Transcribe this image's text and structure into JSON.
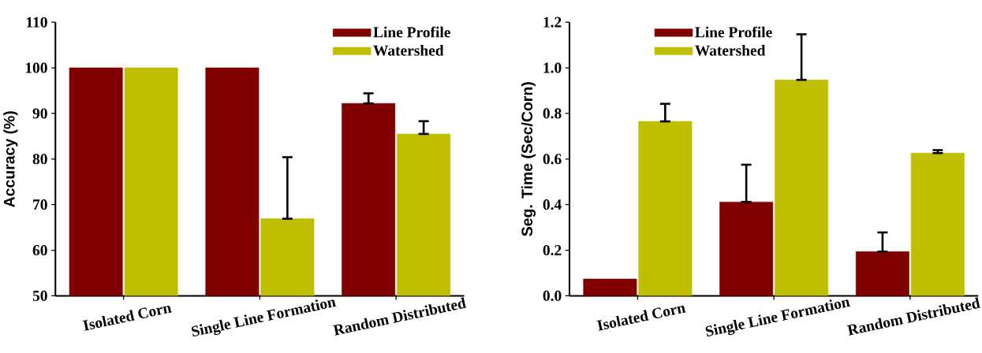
{
  "chart_data": [
    {
      "type": "bar",
      "ylabel": "Accuracy (%)",
      "categories": [
        "Isolated Corn",
        "Single Line Formation",
        "Random Distributed"
      ],
      "ylim": [
        50,
        110
      ],
      "yticks": [
        50,
        60,
        70,
        80,
        90,
        100,
        110
      ],
      "legend": "top right",
      "grid": false,
      "series": [
        {
          "name": "Line Profile",
          "color": "#800000",
          "values": [
            100,
            100,
            92.2
          ],
          "errors": [
            null,
            null,
            [
              92.2,
              94.4
            ]
          ]
        },
        {
          "name": "Watershed",
          "color": "#bfbf00",
          "values": [
            100,
            66.9,
            85.5
          ],
          "errors": [
            null,
            [
              66.9,
              80.4
            ],
            [
              85.5,
              88.3
            ]
          ]
        }
      ]
    },
    {
      "type": "bar",
      "ylabel": "Seg. Time (Sec/Corn)",
      "categories": [
        "Isolated Corn",
        "Single Line Formation",
        "Random Distributed"
      ],
      "ylim": [
        0,
        1.2
      ],
      "yticks": [
        {
          "value": 0,
          "label": "0.0"
        },
        0.2,
        0.4,
        0.6,
        0.8,
        {
          "value": 1,
          "label": "1.0"
        },
        1.2
      ],
      "legend": "top left",
      "grid": false,
      "series": [
        {
          "name": "Line Profile",
          "color": "#800000",
          "values": [
            0.074,
            0.412,
            0.194
          ],
          "errors": [
            null,
            [
              0.412,
              0.575
            ],
            [
              0.194,
              0.278
            ]
          ]
        },
        {
          "name": "Watershed",
          "color": "#bfbf00",
          "values": [
            0.765,
            0.947,
            0.626
          ],
          "errors": [
            [
              0.765,
              0.842
            ],
            [
              0.947,
              1.147
            ],
            [
              0.626,
              0.639
            ]
          ]
        }
      ]
    }
  ]
}
